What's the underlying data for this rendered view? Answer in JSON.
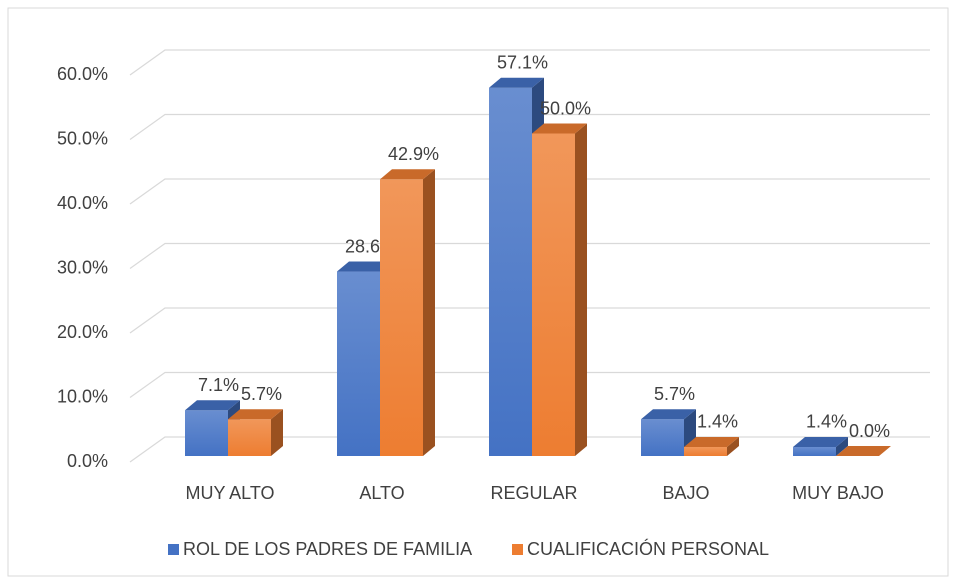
{
  "chart_data": {
    "type": "bar3d",
    "categories": [
      "MUY ALTO",
      "ALTO",
      "REGULAR",
      "BAJO",
      "MUY BAJO"
    ],
    "series": [
      {
        "name": "ROL DE LOS PADRES DE FAMILIA",
        "color": "#4472c4",
        "values": [
          7.1,
          28.6,
          57.1,
          5.7,
          1.4
        ],
        "value_labels": [
          "7.1%",
          "28.6%",
          "57.1%",
          "5.7%",
          "1.4%"
        ]
      },
      {
        "name": "CUALIFICACIÓN PERSONAL",
        "color": "#ed7d31",
        "values": [
          5.7,
          42.9,
          50.0,
          1.4,
          0.0
        ],
        "value_labels": [
          "5.7%",
          "42.9%",
          "50.0%",
          "1.4%",
          "0.0%"
        ]
      }
    ],
    "ylim": [
      0,
      60
    ],
    "yticks": [
      {
        "value": 0,
        "label": "0.0%"
      },
      {
        "value": 10,
        "label": "10.0%"
      },
      {
        "value": 20,
        "label": "20.0%"
      },
      {
        "value": 30,
        "label": "30.0%"
      },
      {
        "value": 40,
        "label": "40.0%"
      },
      {
        "value": 50,
        "label": "50.0%"
      },
      {
        "value": 60,
        "label": "60.0%"
      }
    ],
    "grid": true,
    "legend": "bottom"
  }
}
